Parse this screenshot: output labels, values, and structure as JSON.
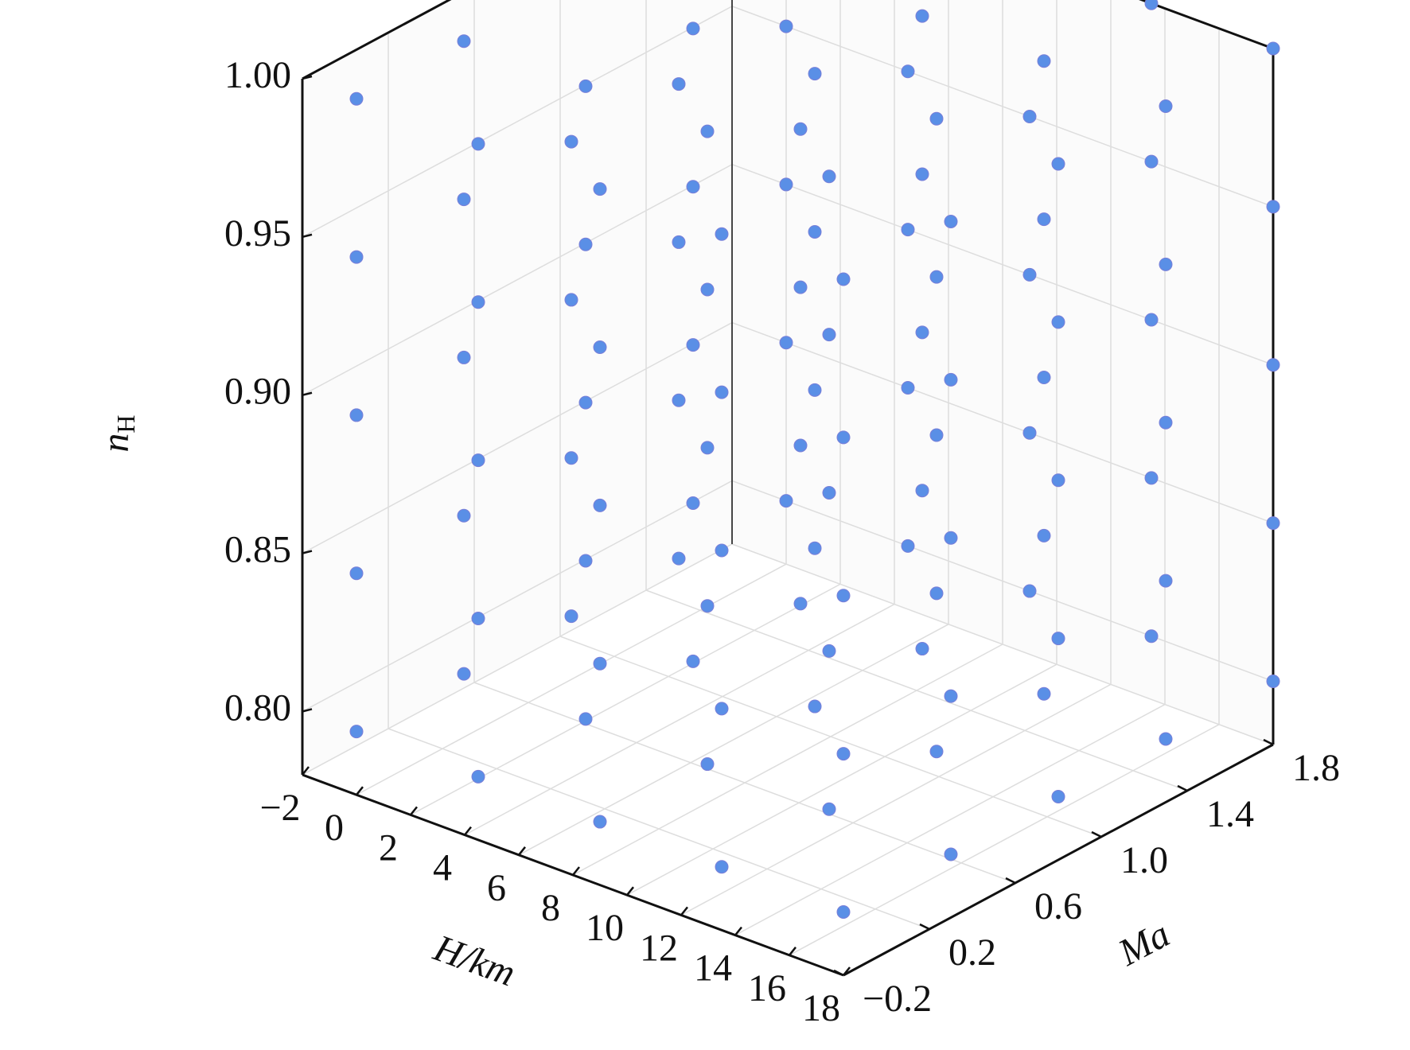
{
  "chart_data": {
    "type": "scatter3d",
    "xlabel": "H/km",
    "ylabel": "Ma",
    "zlabel": {
      "text": "n",
      "subscript": "H"
    },
    "xlim": [
      -2,
      18
    ],
    "ylim": [
      -0.2,
      1.8
    ],
    "zlim": [
      0.78,
      1.0
    ],
    "xticks": [
      {
        "value": -2,
        "label": "−2"
      },
      0,
      2,
      4,
      6,
      8,
      10,
      12,
      14,
      16,
      18
    ],
    "yticks": [
      {
        "value": -0.2,
        "label": "−0.2"
      },
      0.2,
      0.6,
      {
        "value": 1.0,
        "label": "1.0"
      },
      1.4,
      1.8
    ],
    "zticks": [
      {
        "value": 0.8,
        "label": "0.80"
      },
      0.85,
      {
        "value": 0.9,
        "label": "0.90"
      },
      0.95,
      {
        "value": 1.0,
        "label": "1.00"
      }
    ],
    "grid": true,
    "color": "#5a8fe6",
    "x": [
      0,
      4.5,
      9,
      13.5,
      18,
      0,
      4.5,
      9,
      13.5,
      18,
      0,
      4.5,
      9,
      13.5,
      18,
      0,
      4.5,
      9,
      13.5,
      18,
      0,
      4.5,
      9,
      13.5,
      18,
      0,
      4.5,
      9,
      13.5,
      18,
      0,
      4.5,
      9,
      13.5,
      18,
      0,
      4.5,
      9,
      13.5,
      18,
      0,
      4.5,
      9,
      13.5,
      18,
      0,
      4.5,
      9,
      13.5,
      18,
      0,
      4.5,
      9,
      13.5,
      18,
      0,
      4.5,
      9,
      13.5,
      18,
      0,
      4.5,
      9,
      13.5,
      18,
      0,
      4.5,
      9,
      13.5,
      18,
      0,
      4.5,
      9,
      13.5,
      18,
      0,
      4.5,
      9,
      13.5,
      18,
      0,
      4.5,
      9,
      13.5,
      18,
      0,
      4.5,
      9,
      13.5,
      18,
      0,
      4.5,
      9,
      13.5,
      18,
      0,
      4.5,
      9,
      13.5,
      18,
      0,
      4.5,
      9,
      13.5,
      18,
      0,
      4.5,
      9,
      13.5,
      18,
      0,
      4.5,
      9,
      13.5,
      18,
      0,
      4.5,
      9,
      13.5,
      18,
      0,
      4.5,
      9,
      13.5,
      18
    ],
    "y": [
      -0.2,
      -0.2,
      -0.2,
      -0.2,
      -0.2,
      0.3,
      0.3,
      0.3,
      0.3,
      0.3,
      0.8,
      0.8,
      0.8,
      0.8,
      0.8,
      1.3,
      1.3,
      1.3,
      1.3,
      1.3,
      1.8,
      1.8,
      1.8,
      1.8,
      1.8,
      -0.2,
      -0.2,
      -0.2,
      -0.2,
      -0.2,
      0.3,
      0.3,
      0.3,
      0.3,
      0.3,
      0.8,
      0.8,
      0.8,
      0.8,
      0.8,
      1.3,
      1.3,
      1.3,
      1.3,
      1.3,
      1.8,
      1.8,
      1.8,
      1.8,
      1.8,
      -0.2,
      -0.2,
      -0.2,
      -0.2,
      -0.2,
      0.3,
      0.3,
      0.3,
      0.3,
      0.3,
      0.8,
      0.8,
      0.8,
      0.8,
      0.8,
      1.3,
      1.3,
      1.3,
      1.3,
      1.3,
      1.8,
      1.8,
      1.8,
      1.8,
      1.8,
      -0.2,
      -0.2,
      -0.2,
      -0.2,
      -0.2,
      0.3,
      0.3,
      0.3,
      0.3,
      0.3,
      0.8,
      0.8,
      0.8,
      0.8,
      0.8,
      1.3,
      1.3,
      1.3,
      1.3,
      1.3,
      1.8,
      1.8,
      1.8,
      1.8,
      1.8,
      -0.2,
      -0.2,
      -0.2,
      -0.2,
      -0.2,
      0.3,
      0.3,
      0.3,
      0.3,
      0.3,
      0.8,
      0.8,
      0.8,
      0.8,
      0.8,
      1.3,
      1.3,
      1.3,
      1.3,
      1.3,
      1.8,
      1.8,
      1.8,
      1.8,
      1.8
    ],
    "z": [
      0.8,
      0.8,
      0.8,
      0.8,
      0.8,
      0.8,
      0.8,
      0.8,
      0.8,
      0.8,
      0.8,
      0.8,
      0.8,
      0.8,
      0.8,
      0.8,
      0.8,
      0.8,
      0.8,
      0.8,
      0.8,
      0.8,
      0.8,
      0.8,
      0.8,
      0.85,
      0.85,
      0.85,
      0.85,
      0.85,
      0.85,
      0.85,
      0.85,
      0.85,
      0.85,
      0.85,
      0.85,
      0.85,
      0.85,
      0.85,
      0.85,
      0.85,
      0.85,
      0.85,
      0.85,
      0.85,
      0.85,
      0.85,
      0.85,
      0.85,
      0.9,
      0.9,
      0.9,
      0.9,
      0.9,
      0.9,
      0.9,
      0.9,
      0.9,
      0.9,
      0.9,
      0.9,
      0.9,
      0.9,
      0.9,
      0.9,
      0.9,
      0.9,
      0.9,
      0.9,
      0.9,
      0.9,
      0.9,
      0.9,
      0.9,
      0.95,
      0.95,
      0.95,
      0.95,
      0.95,
      0.95,
      0.95,
      0.95,
      0.95,
      0.95,
      0.95,
      0.95,
      0.95,
      0.95,
      0.95,
      0.95,
      0.95,
      0.95,
      0.95,
      0.95,
      0.95,
      0.95,
      0.95,
      0.95,
      0.95,
      1,
      1,
      1,
      1,
      1,
      1,
      1,
      1,
      1,
      1,
      1,
      1,
      1,
      1,
      1,
      1,
      1,
      1,
      1,
      1,
      1,
      1,
      1,
      1,
      1
    ]
  }
}
